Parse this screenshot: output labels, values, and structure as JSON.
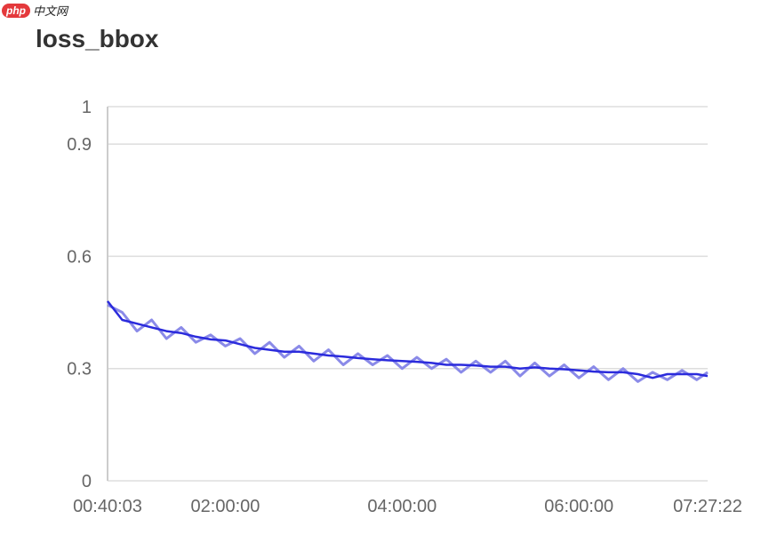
{
  "watermark": {
    "php": "php",
    "cn": "中文网"
  },
  "chart_data": {
    "type": "line",
    "title": "loss_bbox",
    "xlabel": "",
    "ylabel": "",
    "ylim": [
      0,
      1
    ],
    "yticks": [
      "0",
      "0.3",
      "0.6",
      "0.9",
      "1"
    ],
    "ytick_values": [
      0,
      0.3,
      0.6,
      0.9,
      1
    ],
    "xticks": [
      "00:40:03",
      "02:00:00",
      "04:00:00",
      "06:00:00",
      "07:27:22"
    ],
    "xlim": [
      "00:40:03",
      "07:27:22"
    ],
    "grid": true,
    "colors": {
      "line": "#2b2bdc",
      "raw": "#8a8ae8",
      "grid": "#dddddd"
    },
    "x": [
      "00:40:03",
      "00:50:00",
      "01:00:00",
      "01:10:00",
      "01:20:00",
      "01:30:00",
      "01:40:00",
      "01:50:00",
      "02:00:00",
      "02:10:00",
      "02:20:00",
      "02:30:00",
      "02:40:00",
      "02:50:00",
      "03:00:00",
      "03:10:00",
      "03:20:00",
      "03:30:00",
      "03:40:00",
      "03:50:00",
      "04:00:00",
      "04:10:00",
      "04:20:00",
      "04:30:00",
      "04:40:00",
      "04:50:00",
      "05:00:00",
      "05:10:00",
      "05:20:00",
      "05:30:00",
      "05:40:00",
      "05:50:00",
      "06:00:00",
      "06:10:00",
      "06:20:00",
      "06:30:00",
      "06:40:00",
      "06:50:00",
      "07:00:00",
      "07:10:00",
      "07:20:00",
      "07:27:22"
    ],
    "series": [
      {
        "values": [
          0.48,
          0.43,
          0.42,
          0.41,
          0.4,
          0.395,
          0.385,
          0.378,
          0.375,
          0.365,
          0.355,
          0.35,
          0.345,
          0.345,
          0.34,
          0.335,
          0.332,
          0.328,
          0.325,
          0.322,
          0.32,
          0.318,
          0.315,
          0.31,
          0.31,
          0.308,
          0.305,
          0.305,
          0.3,
          0.303,
          0.3,
          0.298,
          0.295,
          0.292,
          0.29,
          0.29,
          0.285,
          0.275,
          0.285,
          0.285,
          0.285,
          0.28
        ]
      },
      {
        "values": [
          0.47,
          0.45,
          0.4,
          0.43,
          0.38,
          0.41,
          0.37,
          0.39,
          0.36,
          0.38,
          0.34,
          0.37,
          0.33,
          0.36,
          0.32,
          0.35,
          0.31,
          0.34,
          0.31,
          0.335,
          0.3,
          0.33,
          0.3,
          0.325,
          0.29,
          0.32,
          0.29,
          0.32,
          0.28,
          0.315,
          0.28,
          0.31,
          0.275,
          0.305,
          0.27,
          0.3,
          0.265,
          0.29,
          0.27,
          0.295,
          0.27,
          0.29
        ]
      }
    ]
  }
}
